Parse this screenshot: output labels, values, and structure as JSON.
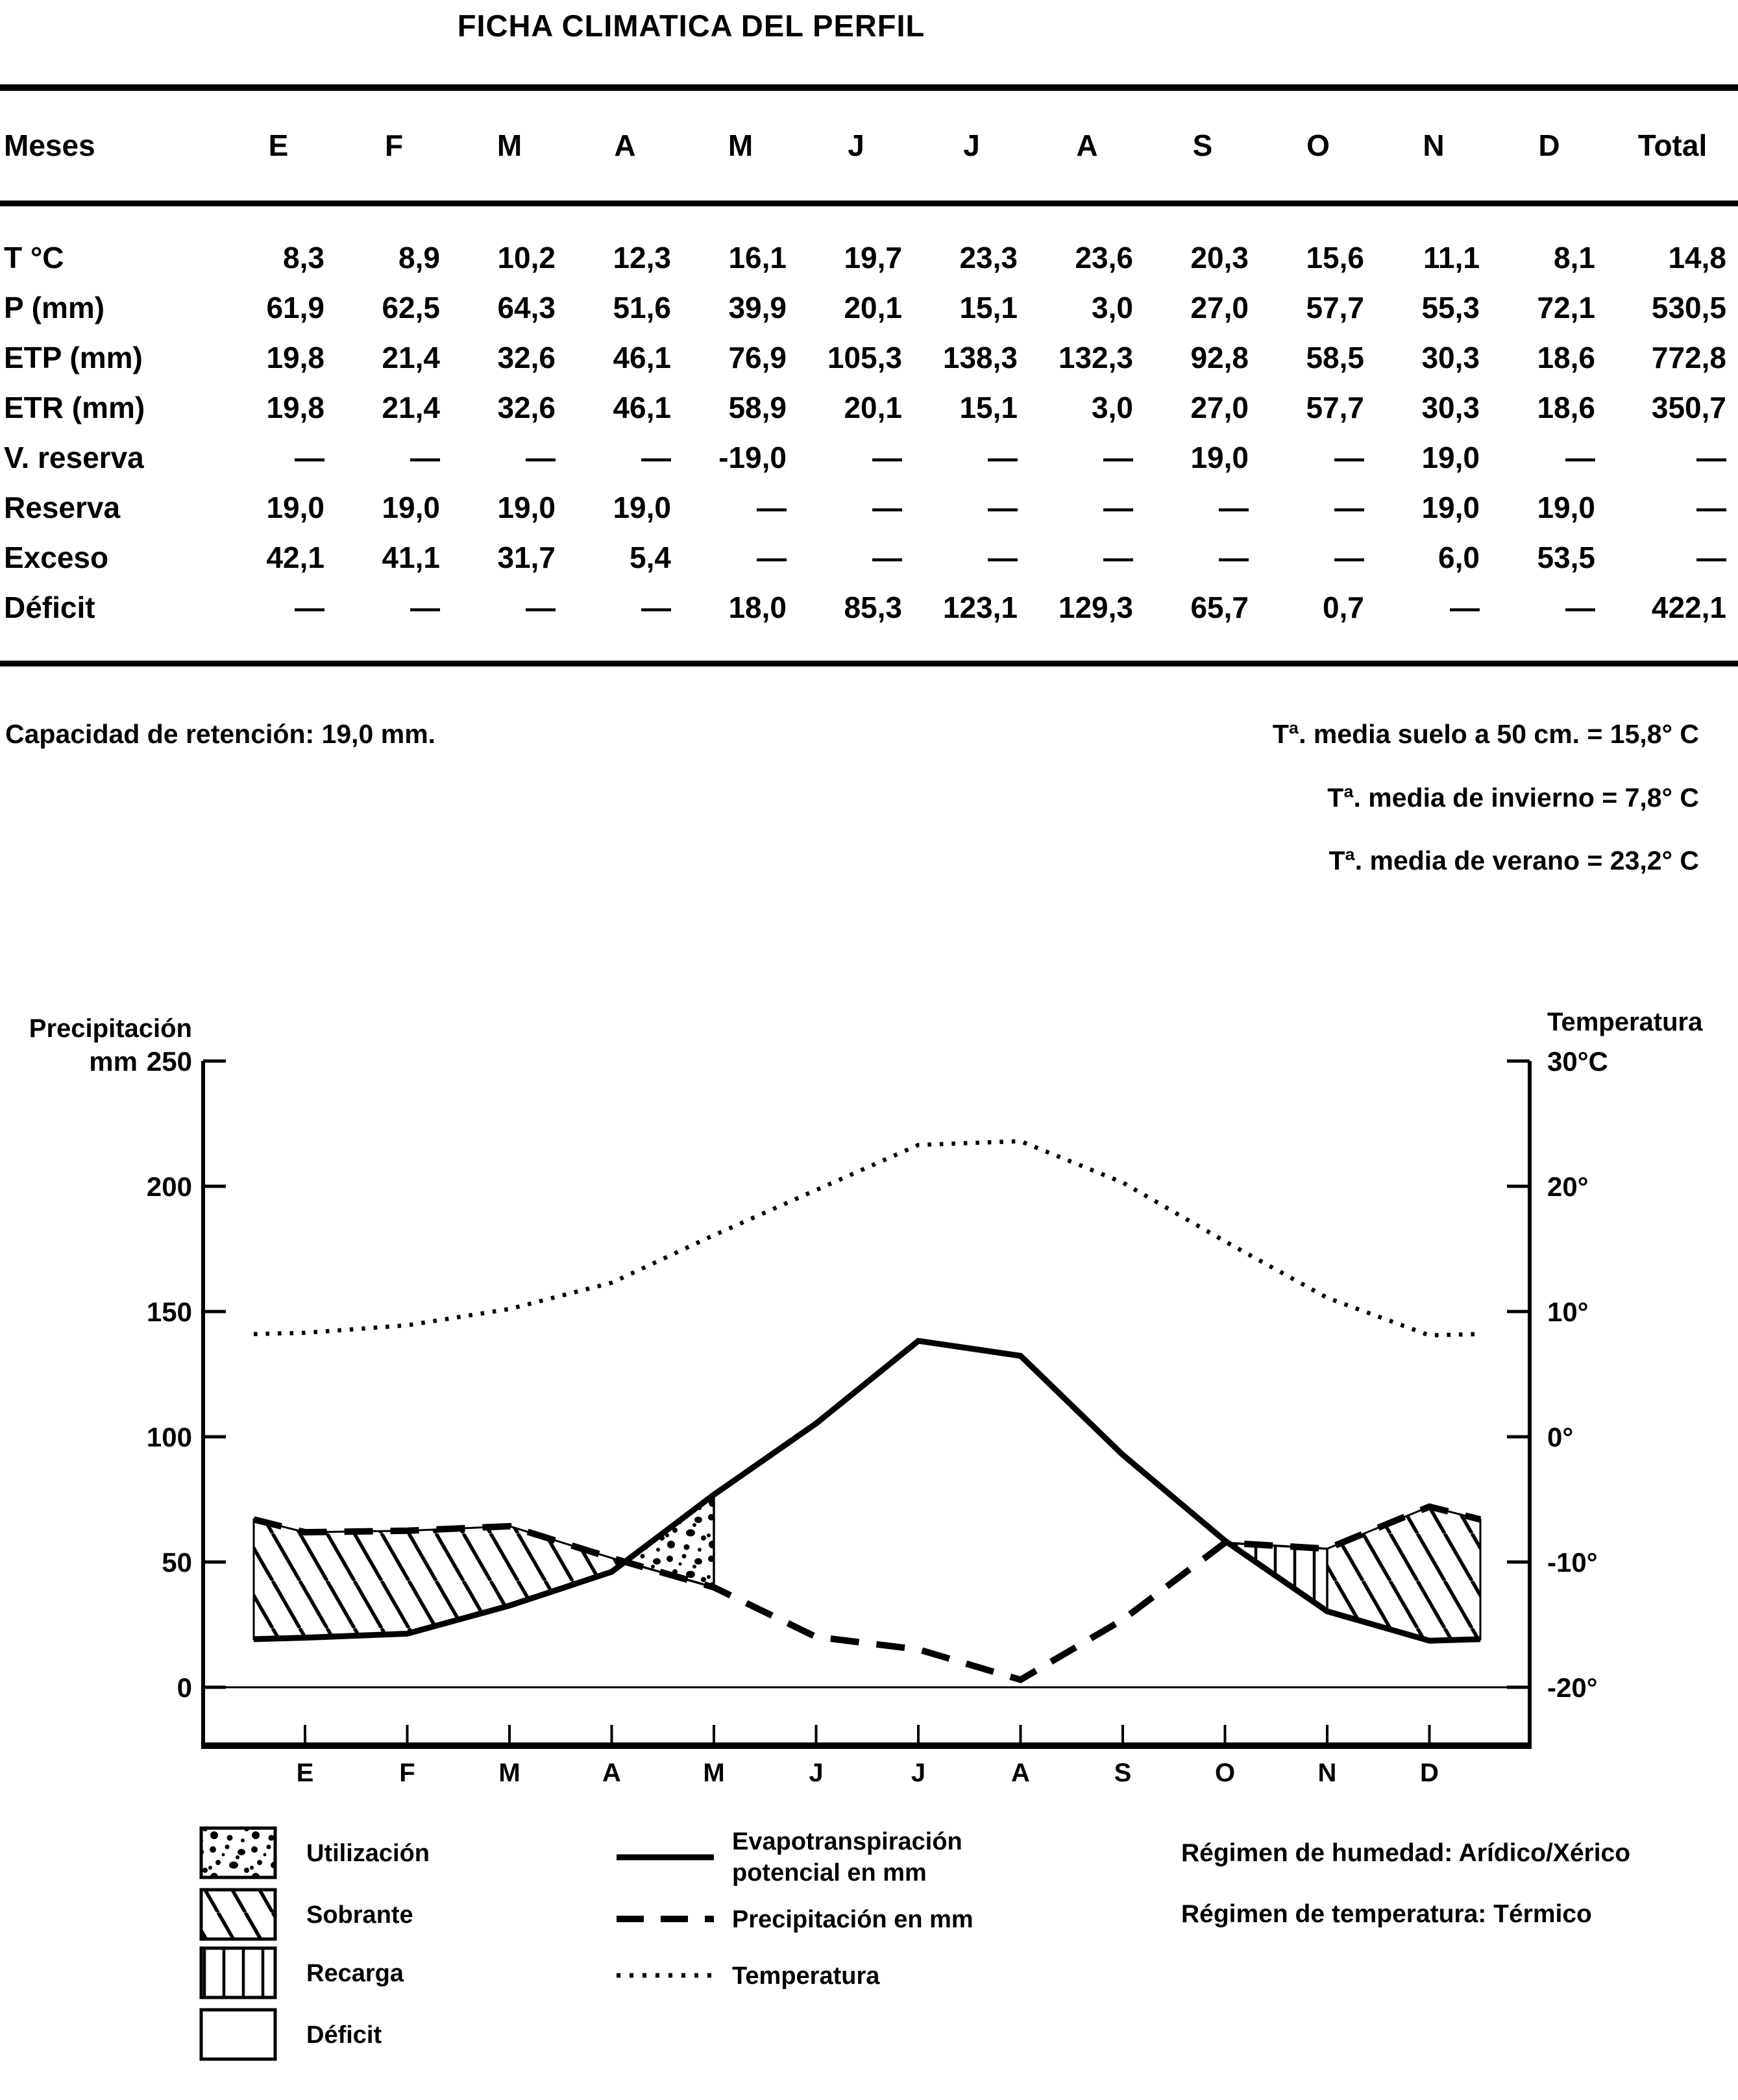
{
  "title": "FICHA CLIMATICA DEL PERFIL",
  "table": {
    "header": [
      "Meses",
      "E",
      "F",
      "M",
      "A",
      "M",
      "J",
      "J",
      "A",
      "S",
      "O",
      "N",
      "D",
      "Total"
    ],
    "rows": [
      {
        "label": "T °C",
        "values": [
          "8,3",
          "8,9",
          "10,2",
          "12,3",
          "16,1",
          "19,7",
          "23,3",
          "23,6",
          "20,3",
          "15,6",
          "11,1",
          "8,1",
          "14,8"
        ]
      },
      {
        "label": "P (mm)",
        "values": [
          "61,9",
          "62,5",
          "64,3",
          "51,6",
          "39,9",
          "20,1",
          "15,1",
          "3,0",
          "27,0",
          "57,7",
          "55,3",
          "72,1",
          "530,5"
        ]
      },
      {
        "label": "ETP (mm)",
        "values": [
          "19,8",
          "21,4",
          "32,6",
          "46,1",
          "76,9",
          "105,3",
          "138,3",
          "132,3",
          "92,8",
          "58,5",
          "30,3",
          "18,6",
          "772,8"
        ]
      },
      {
        "label": "ETR (mm)",
        "values": [
          "19,8",
          "21,4",
          "32,6",
          "46,1",
          "58,9",
          "20,1",
          "15,1",
          "3,0",
          "27,0",
          "57,7",
          "30,3",
          "18,6",
          "350,7"
        ]
      },
      {
        "label": "V. reserva",
        "values": [
          "—",
          "—",
          "—",
          "—",
          "-19,0",
          "—",
          "—",
          "—",
          "19,0",
          "—",
          "19,0",
          "—",
          "—"
        ]
      },
      {
        "label": "Reserva",
        "values": [
          "19,0",
          "19,0",
          "19,0",
          "19,0",
          "—",
          "—",
          "—",
          "—",
          "—",
          "—",
          "19,0",
          "19,0",
          "—"
        ]
      },
      {
        "label": "Exceso",
        "values": [
          "42,1",
          "41,1",
          "31,7",
          "5,4",
          "—",
          "—",
          "—",
          "—",
          "—",
          "—",
          "6,0",
          "53,5",
          "—"
        ]
      },
      {
        "label": "Déficit",
        "values": [
          "—",
          "—",
          "—",
          "—",
          "18,0",
          "85,3",
          "123,1",
          "129,3",
          "65,7",
          "0,7",
          "—",
          "—",
          "422,1"
        ]
      }
    ]
  },
  "notes": {
    "retention": "Capacidad de retención: 19,0 mm.",
    "soil_temp": "Tª. media suelo a 50 cm. = 15,8° C",
    "winter_temp": "Tª. media de invierno = 7,8° C",
    "summer_temp": "Tª. media de verano = 23,2° C"
  },
  "chart_data": {
    "type": "line",
    "months": [
      "E",
      "F",
      "M",
      "A",
      "M",
      "J",
      "J",
      "A",
      "S",
      "O",
      "N",
      "D"
    ],
    "series": [
      {
        "name": "Evapotranspiración potencial en mm",
        "style": "solid",
        "axis": "precipitation_mm",
        "values": [
          19.8,
          21.4,
          32.6,
          46.1,
          76.9,
          105.3,
          138.3,
          132.3,
          92.8,
          58.5,
          30.3,
          18.6
        ]
      },
      {
        "name": "Precipitación en mm",
        "style": "dashed",
        "axis": "precipitation_mm",
        "values": [
          61.9,
          62.5,
          64.3,
          51.6,
          39.9,
          20.1,
          15.1,
          3.0,
          27.0,
          57.7,
          55.3,
          72.1
        ]
      },
      {
        "name": "Temperatura",
        "style": "dotted",
        "axis": "temperature_c",
        "values": [
          8.3,
          8.9,
          10.2,
          12.3,
          16.1,
          19.7,
          23.3,
          23.6,
          20.3,
          15.6,
          11.1,
          8.1
        ]
      }
    ],
    "left_axis": {
      "label": "Precipitación",
      "unit": "mm",
      "ticks": [
        250,
        200,
        150,
        100,
        50,
        0
      ],
      "range": [
        0,
        250
      ]
    },
    "right_axis": {
      "label": "Temperatura",
      "tick_labels": [
        "30°C",
        "20°",
        "10°",
        "0°",
        "-10°",
        "-20°"
      ],
      "values": [
        30,
        20,
        10,
        0,
        -10,
        -20
      ],
      "range": [
        -20,
        30
      ]
    },
    "areas": [
      {
        "name": "Sobrante (invierno-primavera)",
        "pattern": "diagonal-hatch",
        "between": "Precipitación > ETP"
      },
      {
        "name": "Utilización",
        "pattern": "stipple",
        "between": "ETP > Precipitación (reserva usada)"
      },
      {
        "name": "Déficit",
        "pattern": "none",
        "between": "ETP > Precipitación"
      },
      {
        "name": "Recarga",
        "pattern": "vertical-hatch",
        "between": "Precipitación > ETP (rellena reserva)"
      },
      {
        "name": "Sobrante (otoño-invierno)",
        "pattern": "diagonal-hatch",
        "between": "Precipitación > ETP"
      }
    ],
    "grid": false,
    "legend_position": "bottom"
  },
  "legend": {
    "areas": [
      {
        "label": "Utilización",
        "pattern": "stipple"
      },
      {
        "label": "Sobrante",
        "pattern": "diagonal-hatch"
      },
      {
        "label": "Recarga",
        "pattern": "vertical-hatch"
      },
      {
        "label": "Déficit",
        "pattern": "none"
      }
    ],
    "lines": [
      {
        "label": "Evapotranspiración",
        "label2": "potencial en mm",
        "style": "solid"
      },
      {
        "label": "Precipitación en mm",
        "label2": "",
        "style": "dashed"
      },
      {
        "label": "Temperatura",
        "label2": "",
        "style": "dotted"
      }
    ],
    "regimes": [
      {
        "label": "Régimen de humedad: ",
        "value": "Arídico/Xérico"
      },
      {
        "label": "Régimen de temperatura: ",
        "value": "Térmico"
      }
    ]
  }
}
